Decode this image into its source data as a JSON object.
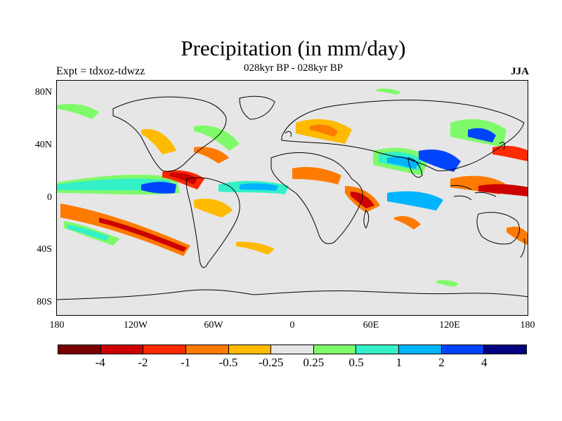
{
  "title": "Precipitation (in mm/day)",
  "subtitle": "028kyr BP - 028kyr BP",
  "left_label": "Expt = tdxoz-tdwzz",
  "right_label": "JJA",
  "map": {
    "projection": "cylindrical-equidistant",
    "lon_range": [
      -180,
      180
    ],
    "lat_range": [
      -90,
      90
    ],
    "background_color": "#e6e6e6",
    "lat_ticks": [
      "80N",
      "40N",
      "0",
      "40S",
      "80S"
    ],
    "lat_values": [
      80,
      40,
      0,
      -40,
      -80
    ],
    "lon_ticks": [
      "180",
      "120W",
      "60W",
      "0",
      "60E",
      "120E",
      "180"
    ],
    "lon_values": [
      -180,
      -120,
      -60,
      0,
      60,
      120,
      180
    ]
  },
  "colorbar": {
    "colors": [
      "#7a0000",
      "#cc0000",
      "#ff2a00",
      "#ff7a00",
      "#ffbb00",
      "#e6e6e6",
      "#7ffa6a",
      "#33f0c8",
      "#00b4ff",
      "#0044ff",
      "#000080"
    ],
    "labels": [
      "-4",
      "-2",
      "-1",
      "-0.5",
      "-0.25",
      "0.25",
      "0.5",
      "1",
      "2",
      "4"
    ]
  },
  "anomaly_regions": [
    {
      "name": "east-pacific-itcz",
      "lon": -105,
      "lat": 10,
      "color": "#0044ff"
    },
    {
      "name": "central-america",
      "lon": -85,
      "lat": 12,
      "color": "#cc0000"
    },
    {
      "name": "tropical-atlantic",
      "lon": -35,
      "lat": 6,
      "color": "#00b4ff"
    },
    {
      "name": "south-pacific",
      "lon": -130,
      "lat": -20,
      "color": "#ff7a00"
    },
    {
      "name": "south-pacific-green",
      "lon": -150,
      "lat": -20,
      "color": "#33f0c8"
    },
    {
      "name": "arabian-sea",
      "lon": 60,
      "lat": 15,
      "color": "#00b4ff"
    },
    {
      "name": "bay-of-bengal",
      "lon": 90,
      "lat": 15,
      "color": "#0044ff"
    },
    {
      "name": "maritime-continent",
      "lon": 120,
      "lat": 5,
      "color": "#ff7a00"
    },
    {
      "name": "west-pacific",
      "lon": 155,
      "lat": 5,
      "color": "#cc0000"
    },
    {
      "name": "east-africa",
      "lon": 45,
      "lat": 0,
      "color": "#ff2a00"
    },
    {
      "name": "europe",
      "lon": 15,
      "lat": 48,
      "color": "#ffbb00"
    },
    {
      "name": "east-asia",
      "lon": 120,
      "lat": 35,
      "color": "#0044ff"
    }
  ]
}
